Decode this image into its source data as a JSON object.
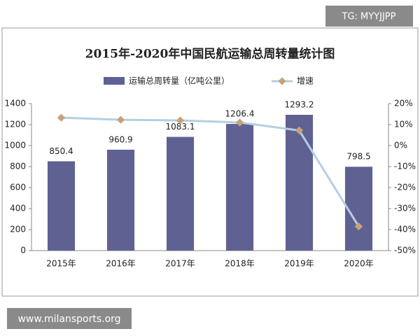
{
  "chart_data": {
    "type": "bar",
    "title": "2015年-2020年中国民航运输总周转量统计图",
    "categories": [
      "2015年",
      "2016年",
      "2017年",
      "2018年",
      "2019年",
      "2020年"
    ],
    "series": [
      {
        "name": "运输总周转量（亿吨公里）",
        "type": "bar",
        "color": "#5f6192",
        "values": [
          850.4,
          960.9,
          1083.1,
          1206.4,
          1293.2,
          798.5
        ]
      },
      {
        "name": "增速",
        "type": "line",
        "axis": "y2",
        "color": "#b4cfe3",
        "marker_color": "#c9a27a",
        "values": [
          13.3,
          12.3,
          12.0,
          11.0,
          7.2,
          -38.5
        ]
      }
    ],
    "ylim": [
      0,
      1400
    ],
    "yticks": [
      0,
      200,
      400,
      600,
      800,
      1000,
      1200,
      1400
    ],
    "y2lim": [
      -50,
      20
    ],
    "y2ticks": [
      {
        "value": -50,
        "label": "-50%"
      },
      {
        "value": -40,
        "label": "-40%"
      },
      {
        "value": -30,
        "label": "-30%"
      },
      {
        "value": -20,
        "label": "-20%"
      },
      {
        "value": -10,
        "label": "-10%"
      },
      {
        "value": 0,
        "label": "0%"
      },
      {
        "value": 10,
        "label": "10%"
      },
      {
        "value": 20,
        "label": "20%"
      }
    ],
    "legend": "top"
  },
  "overlays": {
    "top_right": "TG: MYYJJPP",
    "bottom_left": "www.milansports.org"
  }
}
